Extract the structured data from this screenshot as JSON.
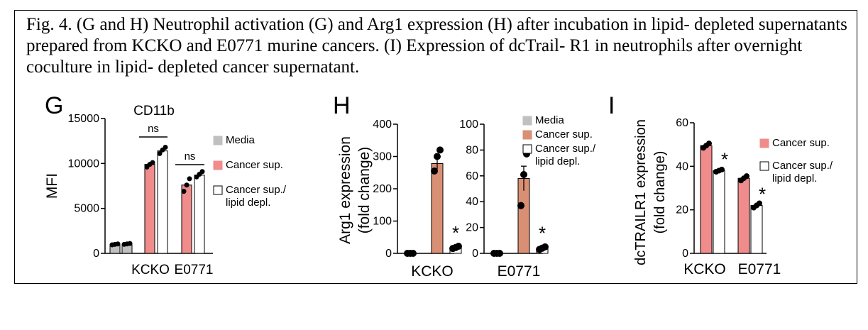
{
  "caption": "Fig. 4. (G and H) Neutrophil activation (G) and Arg1 expression (H) after incubation in lipid- depleted supernatants prepared from KCKO and E0771 murine cancers. (I) Expression of dcTrail- R1 in neutrophils after overnight coculture in lipid- depleted cancer supernatant.",
  "colors": {
    "media": "#c0c0c0",
    "cancer_sup_G": "#f08c8c",
    "cancer_sup_H": "#d98f74",
    "cancer_sup_I": "#f08c8c",
    "lipid_depl": "#ffffff",
    "point": "#000000"
  },
  "chart_data": [
    {
      "panel": "G",
      "type": "bar",
      "title": "CD11b",
      "ylabel": "MFI",
      "ylim": [
        0,
        15000
      ],
      "yticks": [
        0,
        5000,
        10000,
        15000
      ],
      "ytick_labels": [
        "0",
        "5000",
        "10000",
        "15000"
      ],
      "categories": [
        "KCKO",
        "E0771"
      ],
      "legend": [
        "Media",
        "Cancer sup.",
        "Cancer sup./\nlipid depl."
      ],
      "series": [
        {
          "name": "Media",
          "values": [
            1000,
            1050
          ],
          "points": [
            [
              950,
              1000,
              1050
            ],
            [
              1000,
              1050,
              1100
            ]
          ]
        },
        {
          "name": "Cancer sup.",
          "values": [
            9900,
            7600
          ],
          "points": [
            [
              9600,
              9900,
              10100
            ],
            [
              6900,
              7600,
              8300
            ]
          ]
        },
        {
          "name": "Cancer sup./lipid depl.",
          "values": [
            11400,
            8700
          ],
          "points": [
            [
              11100,
              11500,
              11800
            ],
            [
              8500,
              8800,
              9100
            ]
          ]
        }
      ],
      "significance": [
        {
          "category": "KCKO",
          "label": "ns"
        },
        {
          "category": "E0771",
          "label": "ns"
        }
      ]
    },
    {
      "panel": "H",
      "type": "bar",
      "title": "",
      "ylabel": "Arg1 expression\n(fold change)",
      "categories": [
        "KCKO"
      ],
      "ylim": [
        0,
        400
      ],
      "yticks": [
        0,
        100,
        200,
        300,
        400
      ],
      "ytick_labels": [
        "0",
        "100",
        "200",
        "300",
        "400"
      ],
      "series": [
        {
          "name": "Media",
          "values": [
            0
          ],
          "points": [
            [
              0,
              0,
              0
            ]
          ]
        },
        {
          "name": "Cancer sup.",
          "values": [
            278
          ],
          "points": [
            [
              255,
              300,
              320
            ]
          ]
        },
        {
          "name": "Cancer sup./lipid depl.",
          "values": [
            18
          ],
          "points": [
            [
              15,
              18,
              22
            ]
          ]
        }
      ],
      "significance": [
        {
          "series": "Cancer sup./lipid depl.",
          "label": "*"
        }
      ]
    },
    {
      "panel": "H",
      "type": "bar",
      "title": "",
      "ylabel": "",
      "categories": [
        "E0771"
      ],
      "ylim": [
        0,
        100
      ],
      "yticks": [
        0,
        20,
        40,
        60,
        80,
        100
      ],
      "ytick_labels": [
        "0",
        "20",
        "40",
        "60",
        "80",
        "100"
      ],
      "legend": [
        "Media",
        "Cancer sup.",
        "Cancer sup./\nlipid depl."
      ],
      "series": [
        {
          "name": "Media",
          "values": [
            0
          ],
          "points": [
            [
              0,
              0,
              0
            ]
          ]
        },
        {
          "name": "Cancer sup.",
          "values": [
            58
          ],
          "points": [
            [
              37,
              61,
              77
            ]
          ]
        },
        {
          "name": "Cancer sup./lipid depl.",
          "values": [
            4
          ],
          "points": [
            [
              3,
              4,
              5
            ]
          ]
        }
      ],
      "significance": [
        {
          "series": "Cancer sup./lipid depl.",
          "label": "*"
        }
      ]
    },
    {
      "panel": "I",
      "type": "bar",
      "title": "",
      "ylabel": "dcTRAILR1 expression\n(fold change)",
      "ylim": [
        0,
        60
      ],
      "yticks": [
        0,
        20,
        40,
        60
      ],
      "ytick_labels": [
        "0",
        "20",
        "40",
        "60"
      ],
      "categories": [
        "KCKO",
        "E0771"
      ],
      "legend": [
        "Cancer sup.",
        "Cancer sup./\nlipid depl."
      ],
      "series": [
        {
          "name": "Cancer sup.",
          "values": [
            49.5,
            34.5
          ],
          "points": [
            [
              48.5,
              49.5,
              50.5
            ],
            [
              33.5,
              34.5,
              35.5
            ]
          ]
        },
        {
          "name": "Cancer sup./lipid depl.",
          "values": [
            38,
            22
          ],
          "points": [
            [
              37.5,
              38,
              38.5
            ],
            [
              21,
              22,
              23
            ]
          ]
        }
      ],
      "significance": [
        {
          "category": "KCKO",
          "label": "*"
        },
        {
          "category": "E0771",
          "label": "*"
        }
      ]
    }
  ]
}
